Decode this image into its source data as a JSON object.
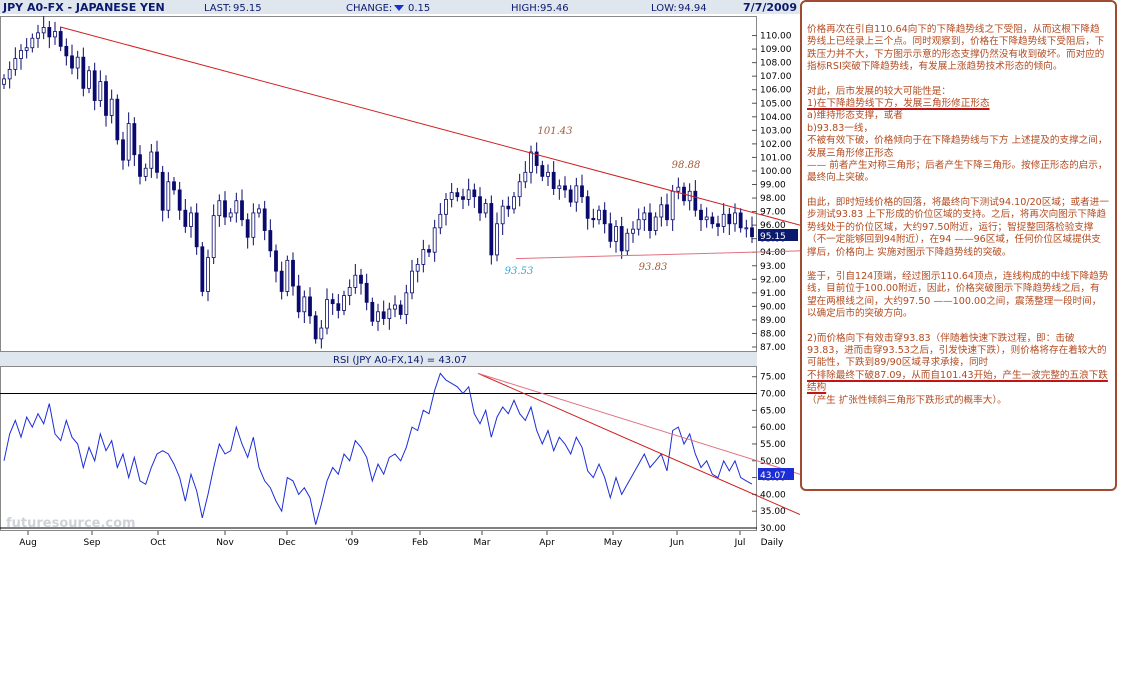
{
  "header": {
    "symbol": "JPY A0-FX - JAPANESE YEN",
    "last_label": "LAST:",
    "last_value": "95.15",
    "change_label": "CHANGE:",
    "change_value": "0.15",
    "high_label": "HIGH:",
    "high_value": "95.46",
    "low_label": "LOW:",
    "low_value": "94.94",
    "date": "7/7/2009"
  },
  "rsi_header": "RSI (JPY A0-FX,14) = 43.07",
  "watermark": "futuresource.com",
  "colors": {
    "price": "#0a0a6e",
    "trendline": "#d02020",
    "support": "#e07080",
    "rsi": "#1d2dd6",
    "accent": "#a04a30"
  },
  "chart_data": [
    {
      "type": "candlestick",
      "title": "JPY A0-FX - JAPANESE YEN",
      "x_ticks": [
        "Aug",
        "Sep",
        "Oct",
        "Nov",
        "Dec",
        "'09",
        "Feb",
        "Mar",
        "Apr",
        "May",
        "Jun",
        "Jul",
        "Daily"
      ],
      "ylim": [
        87,
        111
      ],
      "y_ticks": [
        87.0,
        88.0,
        89.0,
        90.0,
        91.0,
        92.0,
        93.0,
        94.0,
        95.0,
        96.0,
        97.0,
        98.0,
        99.0,
        100.0,
        101.0,
        102.0,
        103.0,
        104.0,
        105.0,
        106.0,
        107.0,
        108.0,
        109.0,
        110.0
      ],
      "last_value_label": "95.15",
      "series": [
        {
          "name": "JPY A0-FX",
          "values": [
            106.8,
            107.5,
            108.3,
            108.9,
            109.1,
            109.8,
            110.2,
            110.6,
            109.9,
            110.3,
            109.2,
            108.5,
            107.6,
            108.4,
            106.1,
            107.4,
            105.2,
            106.6,
            104.1,
            105.3,
            102.3,
            100.8,
            103.5,
            101.2,
            99.6,
            100.2,
            101.4,
            99.9,
            97.1,
            99.2,
            98.6,
            97.1,
            95.9,
            96.9,
            94.4,
            91.1,
            93.6,
            96.7,
            97.8,
            96.6,
            96.9,
            97.8,
            96.4,
            95.1,
            96.9,
            97.2,
            95.6,
            94.1,
            92.6,
            91.1,
            93.4,
            91.5,
            89.6,
            90.7,
            89.3,
            87.6,
            88.4,
            90.5,
            90.2,
            89.7,
            90.8,
            91.4,
            92.3,
            91.7,
            90.3,
            88.9,
            89.6,
            89.1,
            89.8,
            90.1,
            89.4,
            91.0,
            92.6,
            93.1,
            94.2,
            94.0,
            95.8,
            96.8,
            97.9,
            98.4,
            98.1,
            97.9,
            98.6,
            98.1,
            96.9,
            97.6,
            93.8,
            96.1,
            97.4,
            97.2,
            98.1,
            99.2,
            99.9,
            101.4,
            100.4,
            99.6,
            99.9,
            98.7,
            98.9,
            98.6,
            97.7,
            98.9,
            98.1,
            96.5,
            96.4,
            97.1,
            96.1,
            94.8,
            95.9,
            94.1,
            95.4,
            95.7,
            96.4,
            96.9,
            95.6,
            96.6,
            97.5,
            96.4,
            98.5,
            98.8,
            97.8,
            98.5,
            97.1,
            96.4,
            96.6,
            96.1,
            95.9,
            96.8,
            96.1,
            96.9,
            95.8,
            95.8,
            95.15
          ]
        }
      ],
      "trendlines": [
        {
          "from": {
            "x": "Aug",
            "y": 110.64
          },
          "to": {
            "x": "Jul",
            "y": 96.0
          }
        },
        {
          "from": {
            "x": "Mar",
            "y": 93.53
          },
          "to": {
            "x": "Jul",
            "y": 94.1
          }
        }
      ],
      "annotations": [
        "101.43",
        "98.88",
        "93.53",
        "93.83"
      ]
    },
    {
      "type": "line",
      "title": "RSI (JPY A0-FX,14) = 43.07",
      "ylim": [
        30,
        77
      ],
      "y_ticks": [
        30.0,
        35.0,
        40.0,
        45.0,
        50.0,
        55.0,
        60.0,
        65.0,
        70.0,
        75.0
      ],
      "reference_lines": [
        70,
        30
      ],
      "last_value_label": "43.07",
      "series": [
        {
          "name": "RSI",
          "values": [
            50,
            58,
            62,
            57,
            63,
            60,
            64,
            61,
            67,
            58,
            56,
            62,
            57,
            55,
            48,
            54,
            50,
            58,
            53,
            56,
            48,
            52,
            45,
            51,
            44,
            43,
            48,
            52,
            53,
            52,
            49,
            45,
            38,
            46,
            41,
            33,
            40,
            48,
            55,
            52,
            53,
            60,
            55,
            51,
            57,
            48,
            44,
            42,
            38,
            35,
            45,
            44,
            40,
            42,
            39,
            31,
            37,
            44,
            48,
            46,
            52,
            50,
            56,
            54,
            51,
            44,
            49,
            46,
            51,
            52,
            50,
            54,
            60,
            59,
            65,
            64,
            71,
            76,
            74,
            73,
            72,
            70,
            72,
            64,
            61,
            65,
            57,
            63,
            66,
            64,
            68,
            64,
            62,
            66,
            59,
            55,
            59,
            53,
            57,
            55,
            52,
            57,
            54,
            47,
            45,
            49,
            45,
            39,
            45,
            40,
            43,
            46,
            49,
            52,
            48,
            50,
            52,
            47,
            59,
            60,
            55,
            58,
            52,
            48,
            50,
            46,
            45,
            50,
            47,
            50,
            45,
            44,
            43.07
          ]
        }
      ],
      "trendlines": [
        {
          "from": {
            "x": "Feb",
            "y": 76
          },
          "to": {
            "x": "Jul",
            "y": 36
          }
        },
        {
          "from": {
            "x": "Mar",
            "y": 76
          },
          "to": {
            "x": "Jul",
            "y": 45
          }
        }
      ]
    }
  ],
  "panel": {
    "p1": "价格再次在引自110.64向下的下降趋势线之下受阻，从而这根下降趋势线上已经录上三个点。同时观察到，价格在下降趋势线下受阻后，下跌压力并不大，下方图示示意的形态支撑仍然没有收到破坏。而对应的指标RSI突破下降趋势线，有发展上涨趋势技术形态的倾向。",
    "p2a": "对此，后市发展的较大可能性是：",
    "p2b": "1)在下降趋势线下方，发展三角形修正形态",
    "p2c": "a)维持形态支撑，或者\nb)93.83一线，\n不被有效下破，价格倾向于在下降趋势线与下方 上述提及的支撑之间，发展三角形修正形态\n—— 前者产生对称三角形；后者产生下降三角形。按修正形态的启示，最终向上突破。",
    "p3": "由此，即时短线价格的回落，将最终向下测试94.10/20区域；或者进一步测试93.83 上下形成的价位区域的支持。之后，将再次向图示下降趋势线处于的价位区域，大约97.50附近，运行；智捉整回落检验支撑（不一定能够回到94附近），在94 ——96区域，任何价位区域提供支撑后，价格向上 实施对图示下降趋势线的突破。",
    "p4": "鉴于，引自124顶端，经过图示110.64顶点，连线构成的中线下降趋势线，目前位于100.00附近，因此，价格突破图示下降趋势线之后，有望在两根线之间，大约97.50 ——100.00之间，震荡整理一段时间，以确定后市的突破方向。",
    "p5a": "2)而价格向下有效击穿93.83（伴随着快速下跌过程，即：击破93.83，进而击穿93.53之后，引发快速下跌），则价格将存在着较大的可能性，下跌到89/90区域寻求承接，同时",
    "p5b": "不排除最终下破87.09，从而自101.43开始，产生一波完整的五浪下跌结构",
    "p5c": "（产生 扩张性倾斜三角形下跌形式的概率大）。"
  }
}
